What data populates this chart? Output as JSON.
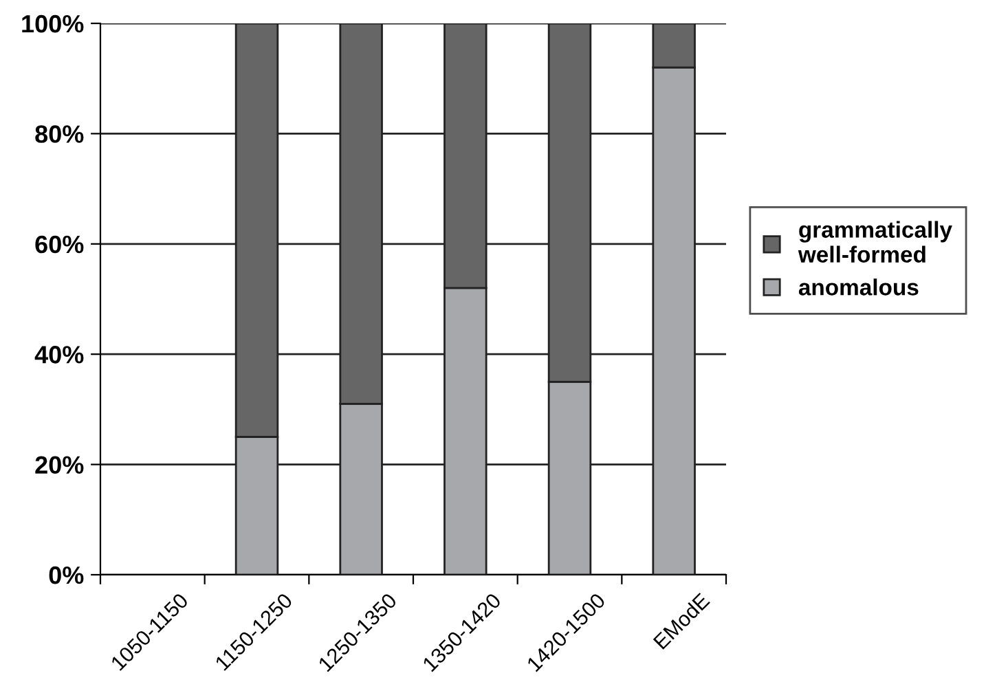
{
  "chart_data": {
    "type": "bar",
    "stacked": true,
    "categories": [
      "1050-1150",
      "1150-1250",
      "1250-1350",
      "1350-1420",
      "1420-1500",
      "EModE"
    ],
    "series": [
      {
        "name": "anomalous",
        "color": "#a7a8ab",
        "values": [
          0,
          25,
          31,
          52,
          35,
          92
        ]
      },
      {
        "name": "grammatically\nwell-formed",
        "color": "#666666",
        "values": [
          0,
          75,
          69,
          48,
          65,
          8
        ]
      }
    ],
    "ylim": [
      0,
      100
    ],
    "yticks": [
      {
        "value": 0,
        "label": "0%"
      },
      {
        "value": 20,
        "label": "20%"
      },
      {
        "value": 40,
        "label": "40%"
      },
      {
        "value": 60,
        "label": "60%"
      },
      {
        "value": 80,
        "label": "80%"
      },
      {
        "value": 100,
        "label": "100%"
      }
    ],
    "grid": "y",
    "legend": "right"
  }
}
